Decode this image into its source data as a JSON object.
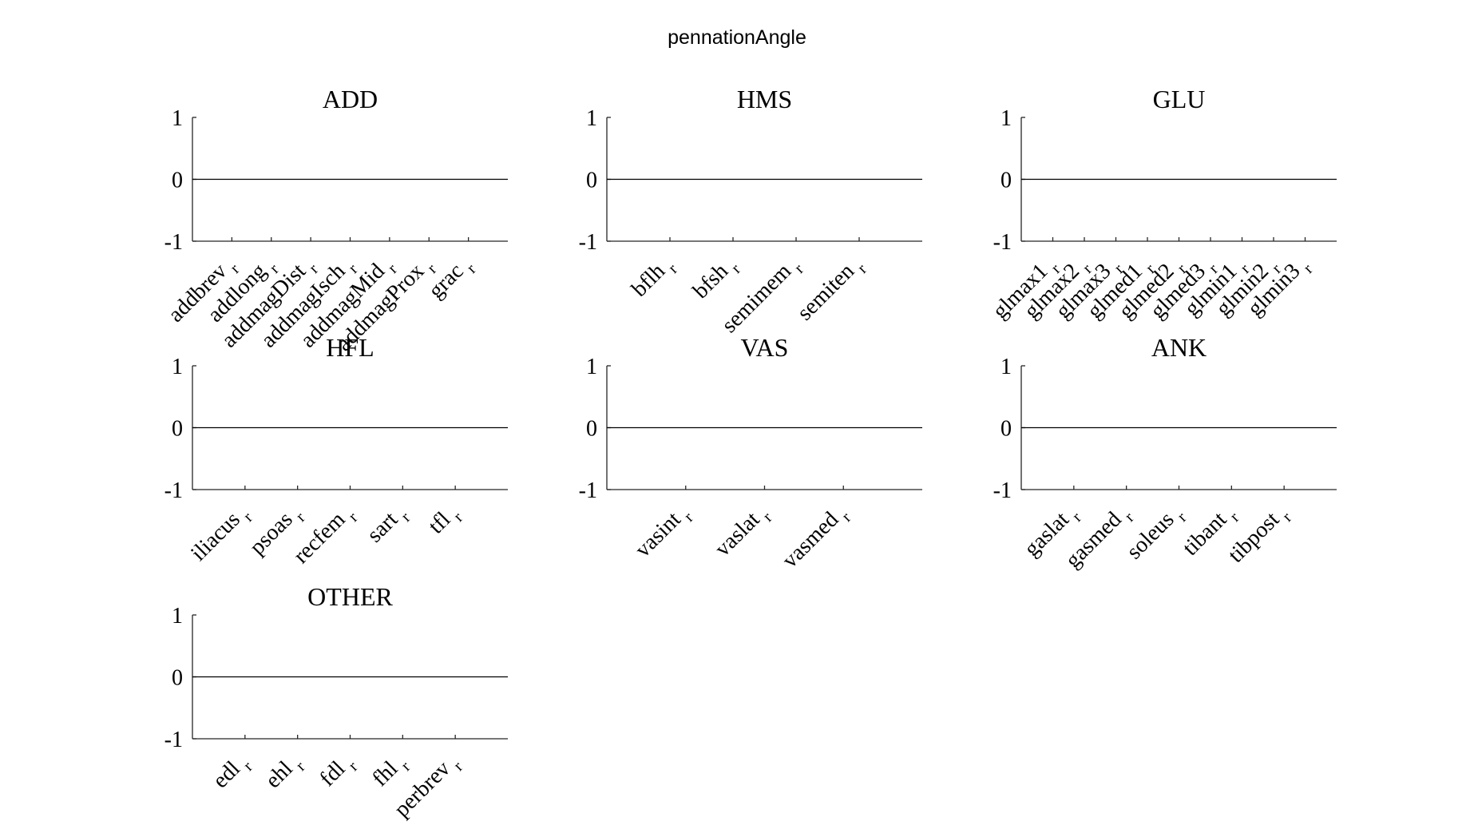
{
  "figure": {
    "title": "pennationAngle"
  },
  "chart_data": [
    {
      "type": "line",
      "title": "ADD",
      "ylim": [
        -1,
        1
      ],
      "yticks": [
        "1",
        "0",
        "-1"
      ],
      "categories": [
        "addbrev",
        "addlong",
        "addmagDist",
        "addmagIsch",
        "addmagMid",
        "addmagProx",
        "grac"
      ],
      "category_subscript": "r",
      "series": [
        {
          "values": [
            0,
            0,
            0,
            0,
            0,
            0,
            0
          ]
        }
      ]
    },
    {
      "type": "line",
      "title": "HMS",
      "ylim": [
        -1,
        1
      ],
      "yticks": [
        "1",
        "0",
        "-1"
      ],
      "categories": [
        "bflh",
        "bfsh",
        "semimem",
        "semiten"
      ],
      "category_subscript": "r",
      "series": [
        {
          "values": [
            0,
            0,
            0,
            0
          ]
        }
      ]
    },
    {
      "type": "line",
      "title": "GLU",
      "ylim": [
        -1,
        1
      ],
      "yticks": [
        "1",
        "0",
        "-1"
      ],
      "categories": [
        "glmax1",
        "glmax2",
        "glmax3",
        "glmed1",
        "glmed2",
        "glmed3",
        "glmin1",
        "glmin2",
        "glmin3"
      ],
      "category_subscript": "r",
      "series": [
        {
          "values": [
            0,
            0,
            0,
            0,
            0,
            0,
            0,
            0,
            0
          ]
        }
      ]
    },
    {
      "type": "line",
      "title": "HFL",
      "ylim": [
        -1,
        1
      ],
      "yticks": [
        "1",
        "0",
        "-1"
      ],
      "categories": [
        "iliacus",
        "psoas",
        "recfem",
        "sart",
        "tfl"
      ],
      "category_subscript": "r",
      "series": [
        {
          "values": [
            0,
            0,
            0,
            0,
            0
          ]
        }
      ]
    },
    {
      "type": "line",
      "title": "VAS",
      "ylim": [
        -1,
        1
      ],
      "yticks": [
        "1",
        "0",
        "-1"
      ],
      "categories": [
        "vasint",
        "vaslat",
        "vasmed"
      ],
      "category_subscript": "r",
      "series": [
        {
          "values": [
            0,
            0,
            0
          ]
        }
      ]
    },
    {
      "type": "line",
      "title": "ANK",
      "ylim": [
        -1,
        1
      ],
      "yticks": [
        "1",
        "0",
        "-1"
      ],
      "categories": [
        "gaslat",
        "gasmed",
        "soleus",
        "tibant",
        "tibpost"
      ],
      "category_subscript": "r",
      "series": [
        {
          "values": [
            0,
            0,
            0,
            0,
            0
          ]
        }
      ]
    },
    {
      "type": "line",
      "title": "OTHER",
      "ylim": [
        -1,
        1
      ],
      "yticks": [
        "1",
        "0",
        "-1"
      ],
      "categories": [
        "edl",
        "ehl",
        "fdl",
        "fhl",
        "perbrev"
      ],
      "category_subscript": "r",
      "series": [
        {
          "values": [
            0,
            0,
            0,
            0,
            0
          ]
        }
      ]
    }
  ]
}
